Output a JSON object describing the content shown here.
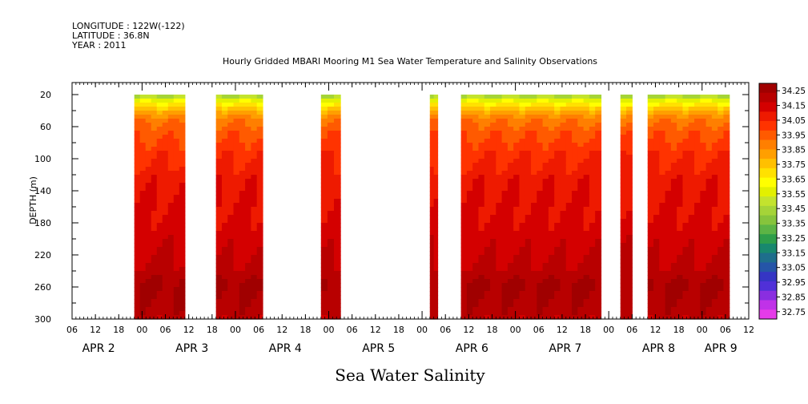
{
  "header": {
    "longitude": "LONGITUDE : 122W(-122)",
    "latitude": "LATITUDE : 36.8N",
    "year": "YEAR : 2011"
  },
  "title": "Hourly Gridded MBARI Mooring M1 Sea Water Temperature and Salinity Observations",
  "bottom_title": "Sea Water Salinity",
  "chart_data": {
    "type": "heatmap",
    "title": "Hourly Gridded MBARI Mooring M1 Sea Water Temperature and Salinity Observations",
    "xlabel": "",
    "ylabel": "DEPTH (m)",
    "variable": "Sea Water Salinity",
    "x_unit": "hours since 2011-04-02 06:00",
    "xlim": [
      0,
      174
    ],
    "ylim": [
      300,
      5
    ],
    "x_tick_values": [
      0,
      6,
      12,
      18,
      24,
      30,
      36,
      42,
      48,
      54,
      60,
      66,
      72,
      78,
      84,
      90,
      96,
      102,
      108,
      114,
      120,
      126,
      132,
      138,
      144,
      150,
      156,
      162,
      168,
      174
    ],
    "x_tick_labels": [
      "06",
      "12",
      "18",
      "00",
      "06",
      "12",
      "18",
      "00",
      "06",
      "12",
      "18",
      "00",
      "06",
      "12",
      "18",
      "00",
      "06",
      "12",
      "18",
      "00",
      "06",
      "12",
      "18",
      "00",
      "06",
      "12",
      "18",
      "00",
      "06",
      "12"
    ],
    "day_labels": [
      {
        "text": "APR  2",
        "x": 6
      },
      {
        "text": "APR  3",
        "x": 30
      },
      {
        "text": "APR  4",
        "x": 54
      },
      {
        "text": "APR  5",
        "x": 78
      },
      {
        "text": "APR  6",
        "x": 102
      },
      {
        "text": "APR  7",
        "x": 126
      },
      {
        "text": "APR  8",
        "x": 150
      },
      {
        "text": "APR  9",
        "x": 166
      }
    ],
    "y_ticks": [
      20,
      60,
      100,
      140,
      180,
      220,
      260,
      300
    ],
    "y_tick_labels": [
      "20",
      "60",
      "100",
      "140",
      "180",
      "220",
      "260",
      "300"
    ],
    "data_segments_hours": [
      [
        16,
        29
      ],
      [
        37,
        49
      ],
      [
        64,
        69
      ],
      [
        92,
        94
      ],
      [
        100,
        136
      ],
      [
        141,
        144
      ],
      [
        148,
        169
      ]
    ],
    "typical_profile": [
      {
        "depth": 20,
        "salinity": 33.45
      },
      {
        "depth": 30,
        "salinity": 33.65
      },
      {
        "depth": 40,
        "salinity": 33.8
      },
      {
        "depth": 50,
        "salinity": 33.9
      },
      {
        "depth": 60,
        "salinity": 33.95
      },
      {
        "depth": 80,
        "salinity": 34.0
      },
      {
        "depth": 100,
        "salinity": 34.05
      },
      {
        "depth": 130,
        "salinity": 34.1
      },
      {
        "depth": 200,
        "salinity": 34.15
      },
      {
        "depth": 240,
        "salinity": 34.2
      },
      {
        "depth": 260,
        "salinity": 34.25
      },
      {
        "depth": 300,
        "salinity": 34.2
      }
    ],
    "colorbar": {
      "levels": [
        "34.25",
        "34.15",
        "34.05",
        "33.95",
        "33.85",
        "33.75",
        "33.65",
        "33.55",
        "33.45",
        "33.35",
        "33.25",
        "33.15",
        "33.05",
        "32.95",
        "32.85",
        "32.75"
      ],
      "colors": [
        "#a00000",
        "#b80000",
        "#d40000",
        "#ee1a00",
        "#ff3300",
        "#ff5a00",
        "#ff7f00",
        "#ff9f00",
        "#ffc000",
        "#ffe100",
        "#ffff00",
        "#e2f000",
        "#c3e32e",
        "#a5d438",
        "#86c43c",
        "#5cb445",
        "#2e9e4a",
        "#18886e",
        "#1e6e8c",
        "#2555a8",
        "#3535c4",
        "#5030d8",
        "#8a2ee0",
        "#c032e8",
        "#e53be8"
      ]
    }
  }
}
